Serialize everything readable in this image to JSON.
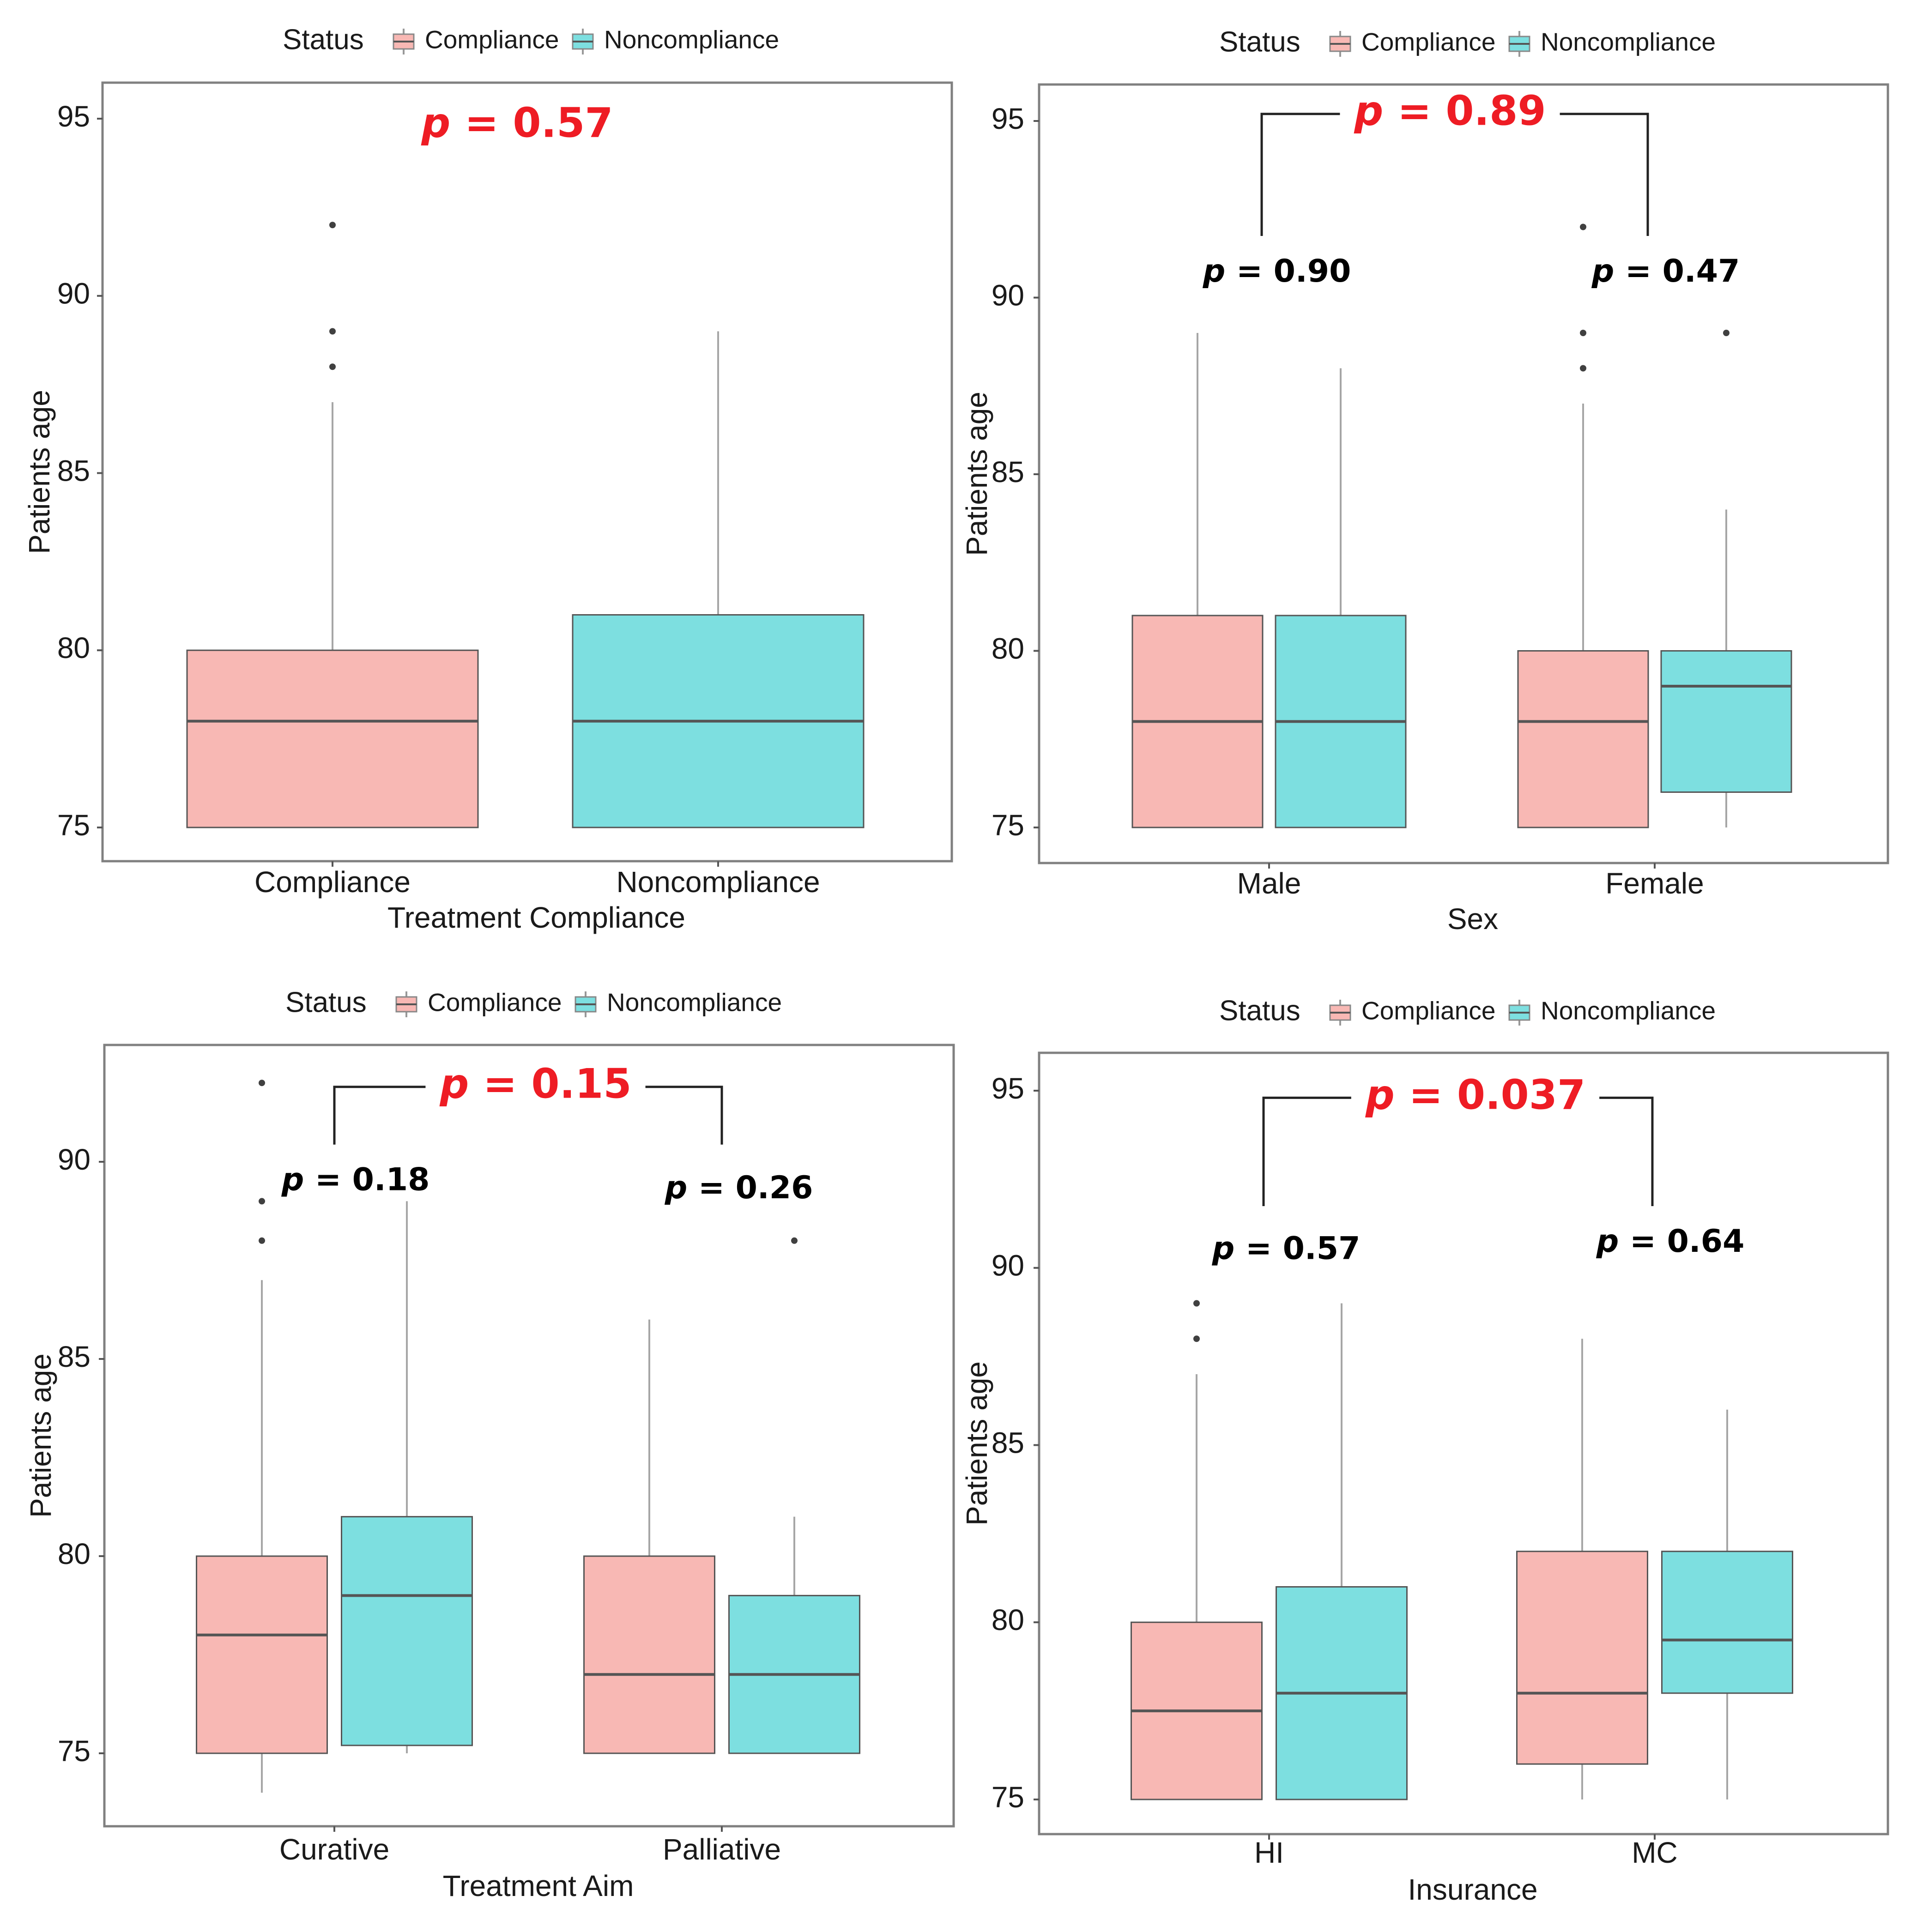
{
  "colors": {
    "compliance": "#f8b8b4",
    "noncompliance": "#7ddfe0",
    "p_main": "#ee1c24",
    "p_sub": "#000000",
    "frame": "#808080",
    "whisker": "#a6a6a6",
    "median": "#555555",
    "outlier": "#404040"
  },
  "legend": {
    "title": "Status",
    "items": [
      "Compliance",
      "Noncompliance"
    ]
  },
  "chart_data": [
    {
      "type": "box",
      "title": "",
      "xlabel": "Treatment Compliance",
      "ylabel": "Patients age",
      "yticks": [
        75,
        80,
        85,
        90,
        95
      ],
      "ylim": [
        74,
        96
      ],
      "grid": false,
      "categories": [
        "Compliance",
        "Noncompliance"
      ],
      "series": [
        {
          "name": "Compliance",
          "boxes": [
            {
              "category": "Compliance",
              "whisker_low": 75,
              "q1": 75,
              "median": 78,
              "q3": 80,
              "whisker_high": 87,
              "outliers": [
                88,
                89,
                92
              ]
            }
          ]
        },
        {
          "name": "Noncompliance",
          "boxes": [
            {
              "category": "Noncompliance",
              "whisker_low": 75,
              "q1": 75,
              "median": 78,
              "q3": 81,
              "whisker_high": 89,
              "outliers": []
            }
          ]
        }
      ],
      "annotations": [
        {
          "label": "p",
          "text": "= 0.57",
          "kind": "main",
          "at_value": 94.8
        }
      ]
    },
    {
      "type": "box",
      "title": "",
      "xlabel": "Sex",
      "ylabel": "Patients age",
      "yticks": [
        75,
        80,
        85,
        90,
        95
      ],
      "ylim": [
        74,
        96
      ],
      "grid": false,
      "categories": [
        "Male",
        "Female"
      ],
      "series": [
        {
          "name": "Compliance",
          "boxes": [
            {
              "category": "Male",
              "whisker_low": 75,
              "q1": 75,
              "median": 78,
              "q3": 81,
              "whisker_high": 89,
              "outliers": []
            },
            {
              "category": "Female",
              "whisker_low": 75,
              "q1": 75,
              "median": 78,
              "q3": 80,
              "whisker_high": 87,
              "outliers": [
                88,
                89,
                92
              ]
            }
          ]
        },
        {
          "name": "Noncompliance",
          "boxes": [
            {
              "category": "Male",
              "whisker_low": 75,
              "q1": 75,
              "median": 78,
              "q3": 81,
              "whisker_high": 88,
              "outliers": []
            },
            {
              "category": "Female",
              "whisker_low": 75,
              "q1": 76,
              "median": 79,
              "q3": 80,
              "whisker_high": 84,
              "outliers": [
                89
              ]
            }
          ]
        }
      ],
      "annotations": [
        {
          "label": "p",
          "text": "= 0.89",
          "kind": "main",
          "at_value": 95.2
        },
        {
          "label": "p",
          "text": "= 0.90",
          "kind": "sub",
          "category": "Male",
          "at_value": 90.7
        },
        {
          "label": "p",
          "text": "= 0.47",
          "kind": "sub",
          "category": "Female",
          "at_value": 90.7
        }
      ]
    },
    {
      "type": "box",
      "title": "",
      "xlabel": "Treatment Aim",
      "ylabel": "Patients age",
      "yticks": [
        75,
        80,
        85,
        90
      ],
      "ylim": [
        73.1,
        93.3
      ],
      "grid": false,
      "categories": [
        "Curative",
        "Palliative"
      ],
      "series": [
        {
          "name": "Compliance",
          "boxes": [
            {
              "category": "Curative",
              "whisker_low": 74,
              "q1": 75,
              "median": 78,
              "q3": 80,
              "whisker_high": 87,
              "outliers": [
                88,
                89,
                92
              ]
            },
            {
              "category": "Palliative",
              "whisker_low": 75,
              "q1": 75,
              "median": 77,
              "q3": 80,
              "whisker_high": 86,
              "outliers": []
            }
          ]
        },
        {
          "name": "Noncompliance",
          "boxes": [
            {
              "category": "Curative",
              "whisker_low": 75,
              "q1": 75.2,
              "median": 79,
              "q3": 81,
              "whisker_high": 89,
              "outliers": []
            },
            {
              "category": "Palliative",
              "whisker_low": 75,
              "q1": 75,
              "median": 77,
              "q3": 79,
              "whisker_high": 81,
              "outliers": [
                88
              ]
            }
          ]
        }
      ],
      "annotations": [
        {
          "label": "p",
          "text": "= 0.15",
          "kind": "main",
          "at_value": 91.9
        },
        {
          "label": "p",
          "text": "= 0.18",
          "kind": "sub",
          "category": "Curative",
          "at_value": 89.5
        },
        {
          "label": "p",
          "text": "= 0.26",
          "kind": "sub",
          "category": "Palliative",
          "at_value": 89.3
        }
      ]
    },
    {
      "type": "box",
      "title": "",
      "xlabel": "Insurance",
      "ylabel": "Patients age",
      "yticks": [
        75,
        80,
        85,
        90,
        95
      ],
      "ylim": [
        74.1,
        96.1
      ],
      "grid": false,
      "categories": [
        "HI",
        "MC"
      ],
      "series": [
        {
          "name": "Compliance",
          "boxes": [
            {
              "category": "HI",
              "whisker_low": 75,
              "q1": 75,
              "median": 77.5,
              "q3": 80,
              "whisker_high": 87,
              "outliers": [
                88,
                89
              ]
            },
            {
              "category": "MC",
              "whisker_low": 75,
              "q1": 76,
              "median": 78,
              "q3": 82,
              "whisker_high": 88,
              "outliers": []
            }
          ]
        },
        {
          "name": "Noncompliance",
          "boxes": [
            {
              "category": "HI",
              "whisker_low": 75,
              "q1": 75,
              "median": 78,
              "q3": 81,
              "whisker_high": 89,
              "outliers": []
            },
            {
              "category": "MC",
              "whisker_low": 75,
              "q1": 78,
              "median": 79.5,
              "q3": 82,
              "whisker_high": 86,
              "outliers": []
            }
          ]
        }
      ],
      "annotations": [
        {
          "label": "p",
          "text": "= 0.037",
          "kind": "main",
          "at_value": 94.8
        },
        {
          "label": "p",
          "text": "= 0.57",
          "kind": "sub",
          "category": "HI",
          "at_value": 90.5
        },
        {
          "label": "p",
          "text": "= 0.64",
          "kind": "sub",
          "category": "MC",
          "at_value": 90.7
        }
      ]
    }
  ]
}
